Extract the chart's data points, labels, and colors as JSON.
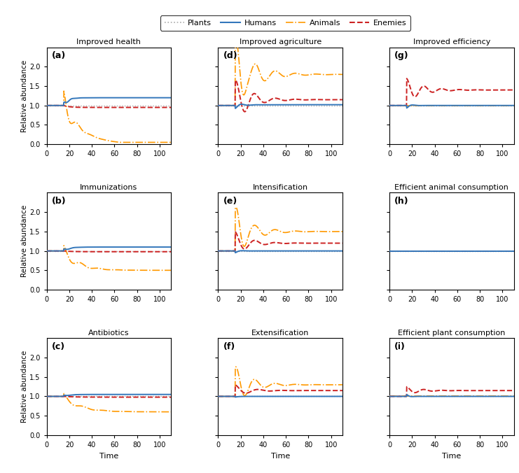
{
  "titles": [
    "Improved health",
    "Immunizations",
    "Antibiotics",
    "Improved agriculture",
    "Intensification",
    "Extensification",
    "Improved efficiency",
    "Efficient animal consumption",
    "Efficient plant consumption"
  ],
  "labels": [
    "(a)",
    "(b)",
    "(c)",
    "(d)",
    "(e)",
    "(f)",
    "(g)",
    "(h)",
    "(i)"
  ],
  "legend_labels": [
    "Plants",
    "Humans",
    "Animals",
    "Enemies"
  ],
  "plant_color": "#AAAAAA",
  "human_color": "#3377BB",
  "animal_color": "#FF9900",
  "enemy_color": "#CC2222",
  "xlim": [
    0,
    110
  ],
  "ylim": [
    0.0,
    2.5
  ],
  "yticks": [
    0.0,
    0.5,
    1.0,
    1.5,
    2.0
  ],
  "xticks": [
    0,
    20,
    40,
    60,
    80,
    100
  ],
  "xlabel": "Time",
  "ylabel": "Relative abundance"
}
